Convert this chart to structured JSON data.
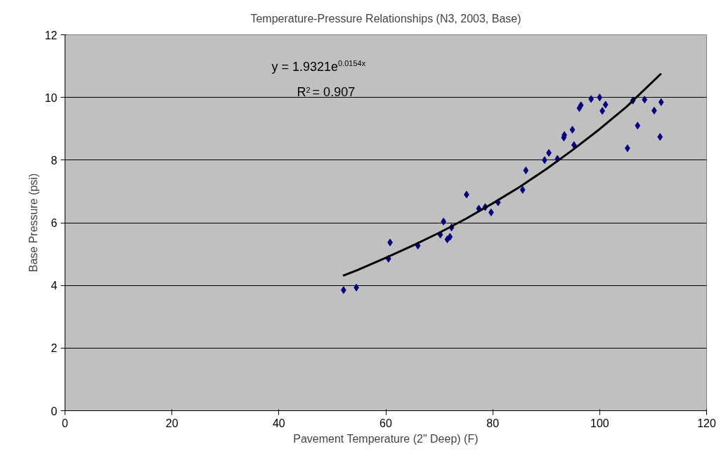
{
  "chart_data": {
    "type": "scatter",
    "title": "Temperature-Pressure Relationships (N3, 2003, Base)",
    "xlabel": "Pavement Temperature (2\" Deep) (F)",
    "ylabel": "Base Pressure (psi)",
    "x": [
      52.1,
      54.5,
      60.5,
      60.8,
      66,
      70.2,
      70.8,
      71.5,
      72,
      72.3,
      75.1,
      77.4,
      78.6,
      79.7,
      81,
      85.6,
      86.2,
      89.7,
      90.5,
      92.1,
      93.3,
      93.4,
      94.9,
      95.2,
      96.2,
      96.5,
      98.4,
      100,
      100.5,
      101.1,
      105.2,
      106.2,
      107.1,
      108.4,
      110.2,
      111.3,
      111.5
    ],
    "series": [
      {
        "color": "#000080",
        "marker": "diamond",
        "values": [
          3.85,
          3.93,
          4.85,
          5.37,
          5.27,
          5.62,
          6.04,
          5.47,
          5.55,
          5.85,
          6.9,
          6.45,
          6.5,
          6.33,
          6.65,
          7.05,
          7.67,
          8.0,
          8.23,
          8.04,
          8.72,
          8.8,
          8.97,
          8.48,
          9.66,
          9.75,
          9.95,
          10.0,
          9.57,
          9.77,
          8.38,
          9.9,
          9.1,
          9.93,
          9.58,
          8.74,
          9.85
        ]
      },
      {
        "type": "line",
        "color": "#000000",
        "marker": "none",
        "line_style": "solid",
        "x": [
          52,
          55,
          60,
          65,
          70,
          75,
          80,
          85,
          90,
          95,
          100,
          105,
          111.5
        ],
        "values": [
          4.31,
          4.51,
          4.88,
          5.27,
          5.68,
          6.13,
          6.62,
          7.14,
          7.71,
          8.33,
          8.99,
          9.7,
          10.76
        ]
      }
    ],
    "annotations": [
      "y = 1.9321e$^{0.0154x}$",
      "R$^{2}$ = 0.907"
    ],
    "xlim": [
      0,
      120
    ],
    "xticks": [
      0,
      20,
      40,
      60,
      80,
      100,
      120
    ],
    "ylim": [
      0,
      12
    ],
    "yticks": [
      0,
      2,
      4,
      6,
      8,
      10,
      12
    ],
    "grid": "y"
  }
}
